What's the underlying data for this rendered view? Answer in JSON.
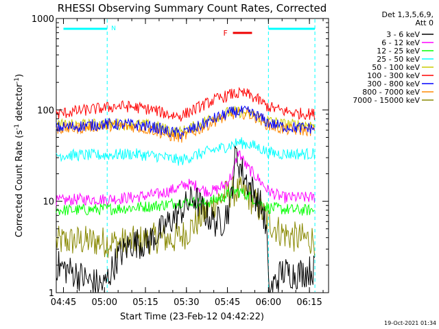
{
  "chart_data": {
    "type": "line",
    "title": "RHESSI Observing Summary Count Rates, Corrected",
    "xlabel": "Start Time (23-Feb-12 04:42:22)",
    "ylabel": "Corrected Count Rate (s^-1 detector^-1)",
    "ylabel_parts": {
      "main": "Corrected Count Rate (s",
      "sup1": "-1",
      "mid": " detector",
      "sup2": "-1",
      "end": ")"
    },
    "yscale": "log",
    "ylim": [
      1,
      1000
    ],
    "xlim": [
      "04:42:22",
      "06:22:00"
    ],
    "xticks": [
      "04:45",
      "05:00",
      "05:15",
      "05:30",
      "05:45",
      "06:00",
      "06:15"
    ],
    "yticks": [
      "1",
      "10",
      "100",
      "1000"
    ],
    "legend_header": [
      "Det 1,3,5,6,9,",
      "Att 0"
    ],
    "legend_placement": "right",
    "timestamp": "19-Oct-2021 01:34",
    "bars": [
      {
        "label": "N",
        "start": "04:45",
        "end": "05:01",
        "color": "#00ffff"
      },
      {
        "label": "",
        "start": "06:00",
        "end": "06:17",
        "color": "#00ffff"
      },
      {
        "label": "F",
        "start": "05:47",
        "end": "05:54",
        "color": "#ee0000"
      }
    ],
    "markers": [
      "05:01",
      "06:00",
      "06:17"
    ],
    "series": [
      {
        "name": "3 - 6 keV",
        "color": "#000000",
        "points": [
          [
            "04:42:22",
            2.0
          ],
          [
            "04:50",
            1.6
          ],
          [
            "04:55",
            1.3
          ],
          [
            "05:00",
            1.2
          ],
          [
            "05:01",
            1.4
          ],
          [
            "05:05",
            2.5
          ],
          [
            "05:10",
            3.5
          ],
          [
            "05:15",
            3.5
          ],
          [
            "05:20",
            4.5
          ],
          [
            "05:25",
            6.5
          ],
          [
            "05:30",
            9
          ],
          [
            "05:33",
            11
          ],
          [
            "05:36",
            8
          ],
          [
            "05:40",
            6
          ],
          [
            "05:43",
            6
          ],
          [
            "05:46",
            9
          ],
          [
            "05:48",
            33
          ],
          [
            "05:51",
            19
          ],
          [
            "05:55",
            12
          ],
          [
            "05:58",
            8
          ],
          [
            "05:59:30",
            4
          ],
          [
            "06:00",
            1
          ],
          [
            "06:05",
            1.7
          ],
          [
            "06:10",
            1.6
          ],
          [
            "06:17",
            1.8
          ]
        ]
      },
      {
        "name": "6 - 12 keV",
        "color": "#ff00ff",
        "points": [
          [
            "04:42:22",
            10
          ],
          [
            "04:50",
            10.5
          ],
          [
            "05:00",
            10.5
          ],
          [
            "05:10",
            11
          ],
          [
            "05:20",
            12
          ],
          [
            "05:27",
            14
          ],
          [
            "05:30",
            15.5
          ],
          [
            "05:33",
            15
          ],
          [
            "05:37",
            13
          ],
          [
            "05:40",
            13
          ],
          [
            "05:44",
            15
          ],
          [
            "05:47",
            20
          ],
          [
            "05:49",
            35
          ],
          [
            "05:52",
            24
          ],
          [
            "05:56",
            18
          ],
          [
            "06:00",
            13
          ],
          [
            "06:05",
            11
          ],
          [
            "06:10",
            11
          ],
          [
            "06:17",
            11
          ]
        ]
      },
      {
        "name": "12 - 25 keV",
        "color": "#00ff00",
        "points": [
          [
            "04:42:22",
            8
          ],
          [
            "04:50",
            8
          ],
          [
            "05:00",
            8.2
          ],
          [
            "05:10",
            8.5
          ],
          [
            "05:20",
            9
          ],
          [
            "05:30",
            10
          ],
          [
            "05:37",
            9.5
          ],
          [
            "05:43",
            11
          ],
          [
            "05:48",
            13
          ],
          [
            "05:52",
            12
          ],
          [
            "05:56",
            10
          ],
          [
            "06:00",
            8.5
          ],
          [
            "06:10",
            8
          ],
          [
            "06:17",
            8
          ]
        ]
      },
      {
        "name": "25 - 50 keV",
        "color": "#00ffff",
        "points": [
          [
            "04:42:22",
            32
          ],
          [
            "04:50",
            32
          ],
          [
            "05:00",
            32
          ],
          [
            "05:10",
            33
          ],
          [
            "05:20",
            31
          ],
          [
            "05:25",
            29
          ],
          [
            "05:28",
            28
          ],
          [
            "05:32",
            31
          ],
          [
            "05:38",
            35
          ],
          [
            "05:45",
            40
          ],
          [
            "05:49",
            44
          ],
          [
            "05:53",
            42
          ],
          [
            "05:57",
            38
          ],
          [
            "06:00",
            34
          ],
          [
            "06:05",
            33
          ],
          [
            "06:10",
            33
          ],
          [
            "06:17",
            33
          ]
        ]
      },
      {
        "name": "50 - 100 keV",
        "color": "#cccc00",
        "points": [
          [
            "04:42:22",
            68
          ],
          [
            "04:50",
            68
          ],
          [
            "05:00",
            70
          ],
          [
            "05:10",
            70
          ],
          [
            "05:18",
            67
          ],
          [
            "05:25",
            58
          ],
          [
            "05:28",
            57
          ],
          [
            "05:32",
            64
          ],
          [
            "05:38",
            78
          ],
          [
            "05:45",
            93
          ],
          [
            "05:50",
            95
          ],
          [
            "05:55",
            88
          ],
          [
            "06:00",
            76
          ],
          [
            "06:05",
            70
          ],
          [
            "06:10",
            69
          ],
          [
            "06:17",
            69
          ]
        ]
      },
      {
        "name": "100 - 300 keV",
        "color": "#ff0000",
        "points": [
          [
            "04:42:22",
            90
          ],
          [
            "04:50",
            97
          ],
          [
            "05:00",
            105
          ],
          [
            "05:05",
            110
          ],
          [
            "05:10",
            108
          ],
          [
            "05:18",
            100
          ],
          [
            "05:24",
            88
          ],
          [
            "05:28",
            86
          ],
          [
            "05:34",
            105
          ],
          [
            "05:40",
            128
          ],
          [
            "05:47",
            150
          ],
          [
            "05:52",
            150
          ],
          [
            "05:56",
            130
          ],
          [
            "06:00",
            108
          ],
          [
            "06:05",
            98
          ],
          [
            "06:10",
            92
          ],
          [
            "06:17",
            90
          ]
        ]
      },
      {
        "name": "300 - 800 keV",
        "color": "#0000ff",
        "points": [
          [
            "04:42:22",
            64
          ],
          [
            "04:50",
            66
          ],
          [
            "05:00",
            70
          ],
          [
            "05:10",
            69
          ],
          [
            "05:18",
            65
          ],
          [
            "05:24",
            57
          ],
          [
            "05:28",
            55
          ],
          [
            "05:34",
            65
          ],
          [
            "05:40",
            80
          ],
          [
            "05:47",
            95
          ],
          [
            "05:52",
            96
          ],
          [
            "05:56",
            86
          ],
          [
            "06:00",
            72
          ],
          [
            "06:05",
            66
          ],
          [
            "06:10",
            64
          ],
          [
            "06:17",
            63
          ]
        ]
      },
      {
        "name": "800 - 7000 keV",
        "color": "#ff8800",
        "points": [
          [
            "04:42:22",
            62
          ],
          [
            "04:50",
            63
          ],
          [
            "05:00",
            68
          ],
          [
            "05:10",
            66
          ],
          [
            "05:18",
            60
          ],
          [
            "05:24",
            52
          ],
          [
            "05:28",
            50
          ],
          [
            "05:34",
            60
          ],
          [
            "05:40",
            75
          ],
          [
            "05:47",
            90
          ],
          [
            "05:52",
            92
          ],
          [
            "05:56",
            82
          ],
          [
            "06:00",
            68
          ],
          [
            "06:05",
            62
          ],
          [
            "06:10",
            60
          ],
          [
            "06:17",
            60
          ]
        ]
      },
      {
        "name": "7000 - 15000 keV",
        "color": "#888800",
        "points": [
          [
            "04:42:22",
            3.6
          ],
          [
            "04:50",
            3.7
          ],
          [
            "05:00",
            3.6
          ],
          [
            "05:05",
            3.5
          ],
          [
            "05:10",
            3.6
          ],
          [
            "05:15",
            3.8
          ],
          [
            "05:20",
            4.0
          ],
          [
            "05:25",
            3.8
          ],
          [
            "05:30",
            4.5
          ],
          [
            "05:35",
            6.5
          ],
          [
            "05:40",
            9.5
          ],
          [
            "05:45",
            12
          ],
          [
            "05:48",
            13
          ],
          [
            "05:52",
            12
          ],
          [
            "05:56",
            9
          ],
          [
            "06:00",
            6
          ],
          [
            "06:05",
            4.5
          ],
          [
            "06:10",
            4.0
          ],
          [
            "06:17",
            3.8
          ]
        ]
      }
    ]
  }
}
